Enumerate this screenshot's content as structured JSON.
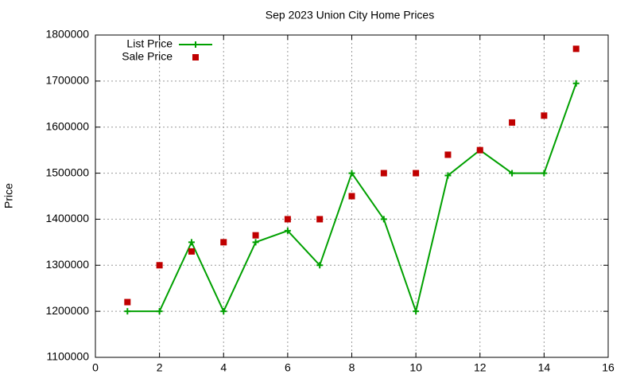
{
  "chart_data": {
    "type": "line",
    "title": "Sep 2023 Union City Home Prices",
    "y_label": "Price",
    "x": [
      1,
      2,
      3,
      4,
      5,
      6,
      7,
      8,
      9,
      10,
      11,
      12,
      13,
      14,
      15
    ],
    "series": [
      {
        "name": "List Price",
        "color": "#00a000",
        "style": "linespoints",
        "values": [
          1200000,
          1200000,
          1350000,
          1200000,
          1350000,
          1375000,
          1300000,
          1500000,
          1400000,
          1200000,
          1495000,
          1550000,
          1500000,
          1500000,
          1695000
        ]
      },
      {
        "name": "Sale Price",
        "color": "#c00000",
        "style": "points",
        "values": [
          1220000,
          1300000,
          1330000,
          1350000,
          1365000,
          1400000,
          1400000,
          1450000,
          1500000,
          1500000,
          1540000,
          1550000,
          1610000,
          1625000,
          1770000
        ]
      }
    ],
    "xlim": [
      0,
      16
    ],
    "xticks": [
      0,
      2,
      4,
      6,
      8,
      10,
      12,
      14,
      16
    ],
    "ylim": [
      1100000,
      1800000
    ],
    "yticks": [
      1100000,
      1200000,
      1300000,
      1400000,
      1500000,
      1600000,
      1700000,
      1800000
    ],
    "grid": true,
    "legend": "top-left"
  }
}
